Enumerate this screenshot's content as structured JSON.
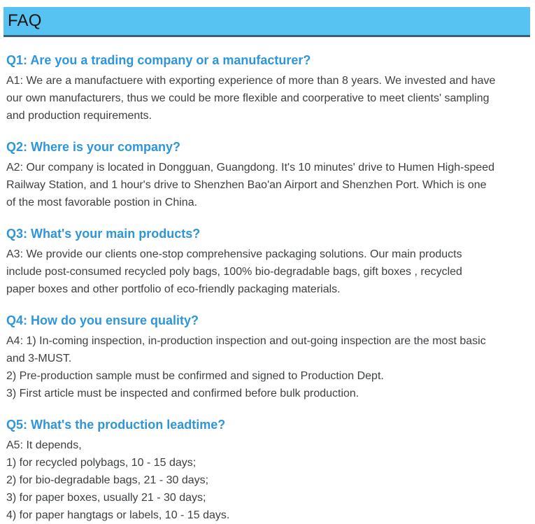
{
  "header": {
    "title": "FAQ"
  },
  "theme": {
    "page_bg": "#ffffff",
    "header_bg": "#56c3f2",
    "header_border": "#3b5e77",
    "header_text": "#131313",
    "question_color": "#2e96d8",
    "answer_color": "#3d4043"
  },
  "faq": {
    "items": [
      {
        "question": "Q1: Are you a trading company or a manufacturer?",
        "answer_lines": [
          "A1: We are a manufactuere with exporting experience of more than 8 years. We invested and have",
          "our own manufacturers, thus we could be more flexible and coorperative to meet clients' sampling",
          "and production requirements."
        ]
      },
      {
        "question": "Q2: Where is your company?",
        "answer_lines": [
          "A2: Our company is located in Dongguan, Guangdong. It's 10 minutes' drive to Humen High-speed",
          "Railway Station, and 1 hour's drive to Shenzhen Bao'an Airport and Shenzhen Port. Which is one",
          "of the most favorable postion in China."
        ]
      },
      {
        "question": "Q3: What's your main products?",
        "answer_lines": [
          "A3: We provide our clients one-stop comprehensive packaging solutions. Our main products",
          "include post-consumed recycled poly bags, 100% bio-degradable bags, gift boxes , recycled",
          "paper boxes and other portfolio of eco-friendly packaging materials."
        ]
      },
      {
        "question": "Q4: How do you ensure quality?",
        "answer_lines": [
          "A4: 1) In-coming inspection, in-production inspection and out-going inspection are the most basic",
          "and 3-MUST.",
          "2) Pre-production sample must be confirmed and signed to Production Dept.",
          "3) First article must be inspected and confirmed before bulk production."
        ]
      },
      {
        "question": "Q5: What's the production leadtime?",
        "answer_lines": [
          "A5: It depends,",
          "1) for recycled polybags, 10 - 15 days;",
          "2) for bio-degradable bags, 21 - 30 days;",
          "3) for paper boxes, usually 21 - 30 days;",
          "4) for paper hangtags or labels, 10 - 15 days."
        ]
      }
    ]
  }
}
